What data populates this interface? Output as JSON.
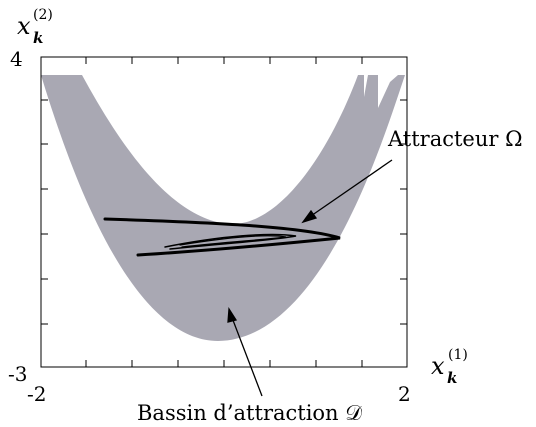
{
  "axes": {
    "y_label_base": "x",
    "y_label_sub": "k",
    "y_label_sup": "(2)",
    "x_label_base": "x",
    "x_label_sub": "k",
    "x_label_sup": "(1)",
    "x_ticks": [
      "-2",
      "2"
    ],
    "y_ticks": [
      "4",
      "-3"
    ],
    "xlim": [
      -2,
      2
    ],
    "ylim": [
      -3,
      4
    ]
  },
  "annotations": {
    "attractor": "Attracteur Ω",
    "basin": "Bassin d’attraction 𝒟"
  },
  "colors": {
    "basin_fill": "#a9a8b3",
    "attractor": "#000000",
    "frame": "#000000"
  }
}
